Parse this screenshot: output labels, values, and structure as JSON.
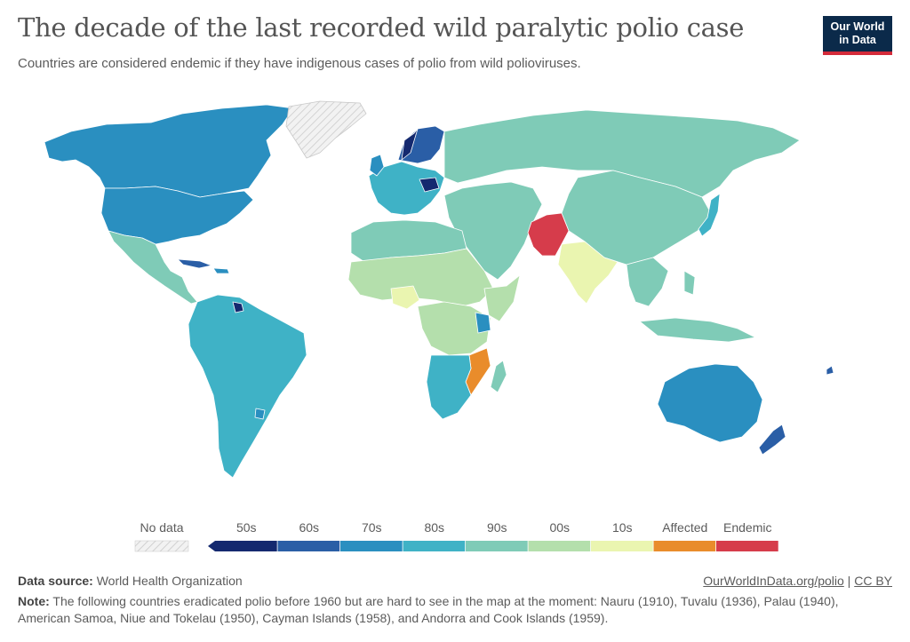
{
  "title": "The decade of the last recorded wild paralytic polio case",
  "subtitle": "Countries are considered endemic if they have indigenous cases of polio from wild polioviruses.",
  "logo": {
    "line1": "Our World",
    "line2": "in Data"
  },
  "legend": {
    "no_data_label": "No data",
    "bins": [
      {
        "label": "50s",
        "color": "#14296f"
      },
      {
        "label": "60s",
        "color": "#2a5ea6"
      },
      {
        "label": "70s",
        "color": "#2a8fc0"
      },
      {
        "label": "80s",
        "color": "#3fb2c6"
      },
      {
        "label": "90s",
        "color": "#7fcbb7"
      },
      {
        "label": "00s",
        "color": "#b4dfac"
      },
      {
        "label": "10s",
        "color": "#eaf5b0"
      },
      {
        "label": "Affected",
        "color": "#e98c2b"
      },
      {
        "label": "Endemic",
        "color": "#d63c4b"
      }
    ]
  },
  "footer": {
    "source_label": "Data source:",
    "source_value": "World Health Organization",
    "link": "OurWorldInData.org/polio",
    "separator": "|",
    "license": "CC BY",
    "note_label": "Note:",
    "note_text": "The following countries eradicated polio before 1960 but are hard to see in the map at the moment: Nauru (1910), Tuvalu (1936), Palau (1940), American Samoa, Niue and Tokelau (1950), Cayman Islands (1958), and Andorra and Cook Islands (1959)."
  },
  "map_regions": [
    {
      "name": "North America",
      "decade": "70s"
    },
    {
      "name": "Greenland",
      "decade": "No data"
    },
    {
      "name": "Central America and Mexico",
      "decade": "90s"
    },
    {
      "name": "Cuba",
      "decade": "60s"
    },
    {
      "name": "South America",
      "decade": "80s"
    },
    {
      "name": "Argentina",
      "decade": "80s"
    },
    {
      "name": "Western Europe",
      "decade": "80s"
    },
    {
      "name": "Scandinavia",
      "decade": "60s"
    },
    {
      "name": "Russia",
      "decade": "90s"
    },
    {
      "name": "China",
      "decade": "90s"
    },
    {
      "name": "Japan",
      "decade": "80s"
    },
    {
      "name": "Pakistan and Afghanistan",
      "decade": "Endemic"
    },
    {
      "name": "India",
      "decade": "10s"
    },
    {
      "name": "Middle East",
      "decade": "90s"
    },
    {
      "name": "Sahel",
      "decade": "00s"
    },
    {
      "name": "Nigeria",
      "decade": "10s"
    },
    {
      "name": "Central Africa",
      "decade": "00s"
    },
    {
      "name": "Mozambique and Malawi",
      "decade": "Affected"
    },
    {
      "name": "Southern Africa",
      "decade": "80s"
    },
    {
      "name": "Southeast Asia",
      "decade": "90s"
    },
    {
      "name": "Indonesia",
      "decade": "90s"
    },
    {
      "name": "Australia",
      "decade": "70s"
    },
    {
      "name": "New Zealand",
      "decade": "60s"
    }
  ]
}
